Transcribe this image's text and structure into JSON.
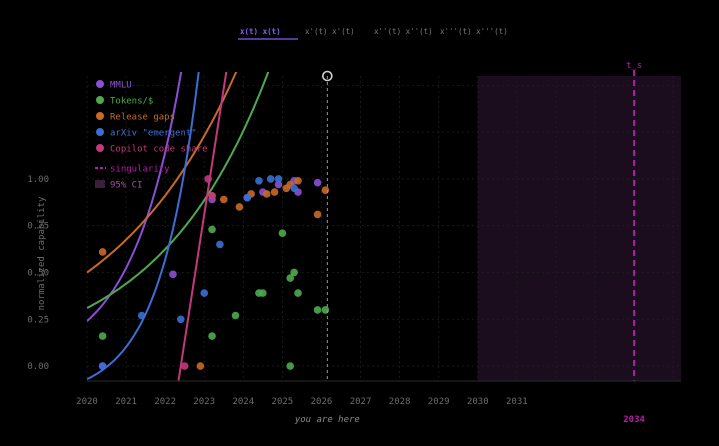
{
  "tabs": [
    {
      "label": "x(t)  x(t)",
      "active": true
    },
    {
      "label": "x'(t)  x'(t)",
      "active": false
    },
    {
      "label": "x''(t)  x''(t)",
      "active": false
    },
    {
      "label": "x'''(t)  x'''(t)",
      "active": false
    }
  ],
  "colors": {
    "background": "#000000",
    "tab_active": "#8a5cf6",
    "mmlu": "#8b4fd6",
    "tokens": "#4faa4f",
    "release": "#c96a26",
    "arxiv": "#3b6fd4",
    "copilot": "#c23a7a",
    "singularity": "#b01fa8",
    "ci": "#1b0d1e",
    "grid": "#1f1f1f",
    "axis_text": "#6c6c6c"
  },
  "chart_data": {
    "type": "scatter",
    "xlabel": "you are here",
    "ylabel": "normalized capability",
    "xlim": [
      2020,
      2035.2
    ],
    "ylim": [
      -0.08,
      1.55
    ],
    "x_ticks": [
      "2020",
      "2021",
      "2022",
      "2023",
      "2024",
      "2025",
      "2026",
      "2027",
      "2028",
      "2029",
      "2030",
      "2031"
    ],
    "y_ticks": [
      "0.00",
      "0.25",
      "0.50",
      "0.75",
      "1.00"
    ],
    "now_x": 2026.15,
    "singularity_x": 2034.0,
    "singularity_label": "t_s",
    "singularity_year_label": "2034",
    "ci_range": [
      2030.0,
      2035.2
    ],
    "legend": [
      {
        "key": "mmlu",
        "label": "MMLU",
        "marker": "dot"
      },
      {
        "key": "tokens",
        "label": "Tokens/$",
        "marker": "dot"
      },
      {
        "key": "release",
        "label": "Release gaps",
        "marker": "dot"
      },
      {
        "key": "arxiv",
        "label": "arXiv \"emergent\"",
        "marker": "dot"
      },
      {
        "key": "copilot",
        "label": "Copilot code share",
        "marker": "dot"
      },
      {
        "key": "singularity",
        "label": "singularity",
        "marker": "dash"
      },
      {
        "key": "ci",
        "label": "95% CI",
        "marker": "box"
      }
    ],
    "series": [
      {
        "key": "mmlu",
        "name": "MMLU",
        "fit": {
          "a": 0.24,
          "b": 0.78,
          "x0": 2020
        },
        "points": [
          [
            2020.4,
            0.0
          ],
          [
            2022.2,
            0.49
          ],
          [
            2023.2,
            0.89
          ],
          [
            2024.1,
            0.9
          ],
          [
            2024.5,
            0.93
          ],
          [
            2024.9,
            0.97
          ],
          [
            2025.3,
            0.99
          ],
          [
            2025.4,
            0.93
          ],
          [
            2025.9,
            0.98
          ]
        ]
      },
      {
        "key": "tokens",
        "name": "Tokens/$",
        "fit": {
          "a": 0.31,
          "b": 0.35,
          "x0": 2020
        },
        "points": [
          [
            2020.4,
            0.16
          ],
          [
            2023.2,
            0.73
          ],
          [
            2023.2,
            0.16
          ],
          [
            2023.8,
            0.27
          ],
          [
            2024.4,
            0.39
          ],
          [
            2024.5,
            0.39
          ],
          [
            2025.0,
            0.71
          ],
          [
            2025.2,
            0.0
          ],
          [
            2025.2,
            0.47
          ],
          [
            2025.3,
            0.5
          ],
          [
            2025.4,
            0.39
          ],
          [
            2025.9,
            0.3
          ],
          [
            2026.1,
            0.3
          ]
        ]
      },
      {
        "key": "release",
        "name": "Release gaps",
        "fit": {
          "a": 0.5,
          "b": 0.3,
          "x0": 2020
        },
        "points": [
          [
            2020.4,
            0.61
          ],
          [
            2022.9,
            0.0
          ],
          [
            2023.2,
            0.91
          ],
          [
            2023.5,
            0.89
          ],
          [
            2023.9,
            0.85
          ],
          [
            2024.2,
            0.92
          ],
          [
            2024.6,
            0.92
          ],
          [
            2024.8,
            0.93
          ],
          [
            2025.1,
            0.95
          ],
          [
            2025.2,
            0.97
          ],
          [
            2025.4,
            0.99
          ],
          [
            2025.9,
            0.81
          ],
          [
            2026.1,
            0.94
          ]
        ]
      },
      {
        "key": "arxiv",
        "name": "arXiv \"emergent\"",
        "fit": {
          "a": 0.1,
          "b": 1.0,
          "x0": 2020
        },
        "points": [
          [
            2020.4,
            0.0
          ],
          [
            2021.4,
            0.27
          ],
          [
            2022.4,
            0.25
          ],
          [
            2023.0,
            0.39
          ],
          [
            2023.4,
            0.65
          ],
          [
            2024.1,
            0.9
          ],
          [
            2024.4,
            0.99
          ],
          [
            2024.7,
            1.0
          ],
          [
            2024.9,
            1.0
          ],
          [
            2025.3,
            0.95
          ]
        ]
      },
      {
        "key": "copilot",
        "name": "Copilot code share",
        "fit": {
          "a": 0.5,
          "b": 0.78,
          "x0": 2022.4,
          "linear": true
        },
        "points": [
          [
            2022.5,
            0.0
          ],
          [
            2023.1,
            1.0
          ],
          [
            2023.2,
            0.91
          ]
        ]
      }
    ]
  }
}
